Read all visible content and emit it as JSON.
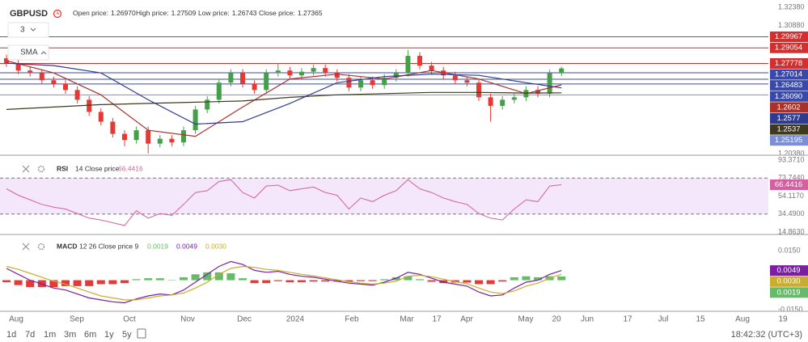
{
  "chart_data": [
    {
      "type": "candlestick",
      "title": "GBPUSD",
      "ohlc_labels": [
        {
          "name": "Open price:",
          "value": "1.26970"
        },
        {
          "name": "High price:",
          "value": "1.27509"
        },
        {
          "name": "Low price:",
          "value": "1.26743"
        },
        {
          "name": "Close price:",
          "value": "1.27365"
        }
      ],
      "indicator_period": "3",
      "indicator": "SMA",
      "open": [
        1.282,
        1.278,
        1.272,
        1.27,
        1.264,
        1.261,
        1.256,
        1.248,
        1.238,
        1.23,
        1.22,
        1.215,
        1.223,
        1.212,
        1.216,
        1.213,
        1.223,
        1.24,
        1.248,
        1.262,
        1.27,
        1.261,
        1.256,
        1.27,
        1.272,
        1.268,
        1.271,
        1.274,
        1.27,
        1.266,
        1.258,
        1.264,
        1.26,
        1.266,
        1.27,
        1.284,
        1.276,
        1.272,
        1.268,
        1.264,
        1.262,
        1.25,
        1.243,
        1.248,
        1.25,
        1.256,
        1.253,
        1.2697
      ],
      "high": [
        1.285,
        1.281,
        1.275,
        1.273,
        1.267,
        1.264,
        1.259,
        1.251,
        1.241,
        1.233,
        1.223,
        1.226,
        1.226,
        1.219,
        1.219,
        1.226,
        1.243,
        1.251,
        1.265,
        1.273,
        1.273,
        1.264,
        1.273,
        1.278,
        1.275,
        1.274,
        1.277,
        1.277,
        1.273,
        1.269,
        1.267,
        1.267,
        1.269,
        1.273,
        1.289,
        1.287,
        1.279,
        1.275,
        1.271,
        1.267,
        1.265,
        1.253,
        1.251,
        1.253,
        1.259,
        1.259,
        1.2727,
        1.2751
      ],
      "low": [
        1.275,
        1.269,
        1.267,
        1.261,
        1.258,
        1.253,
        1.245,
        1.235,
        1.227,
        1.217,
        1.21,
        1.212,
        1.204,
        1.209,
        1.21,
        1.21,
        1.22,
        1.237,
        1.245,
        1.259,
        1.258,
        1.253,
        1.253,
        1.267,
        1.265,
        1.265,
        1.268,
        1.267,
        1.263,
        1.255,
        1.255,
        1.257,
        1.257,
        1.263,
        1.267,
        1.273,
        1.269,
        1.265,
        1.261,
        1.259,
        1.247,
        1.23,
        1.24,
        1.245,
        1.247,
        1.25,
        1.25,
        1.2674
      ],
      "close": [
        1.278,
        1.272,
        1.27,
        1.264,
        1.261,
        1.256,
        1.248,
        1.238,
        1.23,
        1.22,
        1.215,
        1.223,
        1.212,
        1.216,
        1.213,
        1.223,
        1.24,
        1.248,
        1.262,
        1.27,
        1.261,
        1.256,
        1.27,
        1.272,
        1.268,
        1.271,
        1.274,
        1.27,
        1.266,
        1.258,
        1.264,
        1.26,
        1.266,
        1.27,
        1.284,
        1.276,
        1.272,
        1.268,
        1.264,
        1.262,
        1.25,
        1.243,
        1.248,
        1.25,
        1.256,
        1.253,
        1.2697,
        1.2737
      ],
      "colors": {
        "up": "#43a047",
        "down": "#e53935"
      },
      "ylim": [
        1.2025,
        1.3298
      ],
      "yticks": [
        {
          "value": 1.3238,
          "label": "1.32380"
        },
        {
          "value": 1.3088,
          "label": "1.30880"
        },
        {
          "value": 1.2038,
          "label": "1.20380"
        }
      ],
      "levels": {
        "values": [
          1.29967,
          1.29054,
          1.27778,
          1.27014,
          1.26483,
          1.2609,
          1.25195
        ],
        "value_labels": [
          "1.29967",
          "1.29054",
          "1.27778",
          "1.27014",
          "1.26483",
          "1.26090",
          "1.25195"
        ],
        "colors": [
          "#d32f2f",
          "#d32f2f",
          "#d32f2f",
          "#3949ab",
          "#3949ab",
          "#3949ab",
          "#7b8fd6"
        ]
      },
      "series": [
        {
          "color": "#a8322a",
          "x": [
            0,
            4,
            8,
            12,
            16,
            20,
            24,
            28,
            32,
            36,
            40,
            44,
            47
          ],
          "values": [
            1.28,
            1.27,
            1.252,
            1.223,
            1.218,
            1.242,
            1.265,
            1.269,
            1.265,
            1.272,
            1.265,
            1.253,
            1.2602
          ]
        },
        {
          "color": "#2e3b8f",
          "x": [
            0,
            4,
            8,
            12,
            16,
            20,
            24,
            28,
            32,
            36,
            40,
            44,
            47
          ],
          "values": [
            1.278,
            1.276,
            1.27,
            1.248,
            1.228,
            1.23,
            1.245,
            1.262,
            1.267,
            1.269,
            1.268,
            1.262,
            1.2577
          ]
        },
        {
          "color": "#3d3a1e",
          "x": [
            0,
            4,
            8,
            12,
            16,
            20,
            24,
            28,
            32,
            36,
            40,
            44,
            47
          ],
          "values": [
            1.24,
            1.242,
            1.244,
            1.245,
            1.246,
            1.247,
            1.25,
            1.252,
            1.253,
            1.254,
            1.254,
            1.2535,
            1.2537
          ]
        }
      ]
    },
    {
      "type": "line",
      "title": "RSI",
      "params": "14 Close price",
      "color": "#d4609f",
      "band_color": "#f4e6fb",
      "values": [
        62,
        55,
        50,
        45,
        42,
        40,
        35,
        30,
        28,
        25,
        22,
        38,
        30,
        35,
        33,
        45,
        58,
        60,
        70,
        72,
        58,
        52,
        65,
        66,
        60,
        62,
        64,
        58,
        55,
        40,
        52,
        48,
        55,
        60,
        72,
        62,
        58,
        52,
        48,
        45,
        35,
        30,
        28,
        40,
        50,
        48,
        65,
        66.4416
      ],
      "ylim": [
        12.2,
        95.1
      ],
      "yticks": [
        {
          "value": 93.371,
          "label": "93.3710"
        },
        {
          "value": 73.744,
          "label": "73.7440"
        },
        {
          "value": 54.117,
          "label": "54.1170"
        },
        {
          "value": 34.49,
          "label": "34.4900"
        },
        {
          "value": 14.863,
          "label": "14.8630"
        }
      ]
    },
    {
      "type": "macd",
      "title": "MACD",
      "params": "12 26 Close price 9",
      "histogram": {
        "values": [
          -0.001,
          -0.0025,
          -0.0035,
          -0.0035,
          -0.0035,
          -0.003,
          -0.003,
          -0.003,
          -0.002,
          -0.002,
          -0.0015,
          0.0005,
          0.001,
          0.001,
          0.0,
          0.0015,
          0.003,
          0.004,
          0.004,
          0.0035,
          0.001,
          -0.0015,
          -0.0015,
          -0.0005,
          -0.001,
          -0.001,
          -0.0007,
          -0.0007,
          -0.0007,
          -0.0007,
          -0.0005,
          -0.0005,
          0.0005,
          0.0015,
          0.002,
          0.0005,
          -0.0008,
          -0.0015,
          -0.0012,
          -0.0012,
          -0.002,
          -0.002,
          -0.0007,
          0.0015,
          0.002,
          0.0015,
          0.002,
          0.0019
        ],
        "up_color": "#66bb6a",
        "down_color": "#e53935"
      },
      "series": [
        {
          "color": "#7b1fa2",
          "values": [
            0.006,
            0.003,
            0.0,
            -0.002,
            -0.004,
            -0.005,
            -0.007,
            -0.009,
            -0.01,
            -0.011,
            -0.0115,
            -0.0095,
            -0.008,
            -0.007,
            -0.0075,
            -0.005,
            -0.001,
            0.003,
            0.007,
            0.0095,
            0.008,
            0.005,
            0.004,
            0.0045,
            0.003,
            0.002,
            0.0015,
            0.0005,
            -0.0005,
            -0.0015,
            -0.002,
            -0.0025,
            -0.001,
            0.001,
            0.004,
            0.003,
            0.001,
            -0.001,
            -0.002,
            -0.003,
            -0.006,
            -0.008,
            -0.0075,
            -0.004,
            -0.001,
            0.0,
            0.003,
            0.0049
          ]
        },
        {
          "color": "#c9ad2e",
          "values": [
            0.007,
            0.0055,
            0.0035,
            0.0015,
            -0.0005,
            -0.002,
            -0.004,
            -0.006,
            -0.008,
            -0.009,
            -0.01,
            -0.01,
            -0.009,
            -0.008,
            -0.0075,
            -0.0065,
            -0.004,
            -0.001,
            0.003,
            0.006,
            0.007,
            0.0065,
            0.0055,
            0.005,
            0.004,
            0.003,
            0.0022,
            0.0012,
            0.0002,
            -0.0008,
            -0.0015,
            -0.002,
            -0.0015,
            -0.0005,
            0.002,
            0.0025,
            0.0018,
            0.0005,
            -0.0008,
            -0.0018,
            -0.004,
            -0.006,
            -0.0068,
            -0.0055,
            -0.003,
            -0.0015,
            0.001,
            0.003
          ]
        }
      ],
      "current": [
        {
          "value": 0.0019,
          "color": "#66bb6a"
        },
        {
          "value": 0.0049,
          "color": "#7b1fa2"
        },
        {
          "value": {
            "value": 0.003,
            "label": "0.0030"
          },
          "color": "#c9ad2e"
        }
      ],
      "ylim": [
        -0.0158,
        0.0216
      ],
      "yticks": [
        {
          "value": 0.015,
          "label": "0.0150"
        },
        {
          "value": -0.015,
          "label": "-0.0150"
        }
      ]
    }
  ],
  "x_axis": {
    "labels": [
      "Aug",
      "Sep",
      "Oct",
      "Nov",
      "Dec",
      "2024",
      "Feb",
      "Mar",
      "17",
      "Apr",
      "May",
      "20",
      "Jun",
      "17",
      "Jul",
      "15",
      "Aug",
      "19"
    ]
  },
  "toolbar": {
    "ranges": [
      "1d",
      "7d",
      "1m",
      "3m",
      "6m",
      "1y",
      "5y"
    ],
    "time": "18:42:32 (UTC+3)"
  }
}
